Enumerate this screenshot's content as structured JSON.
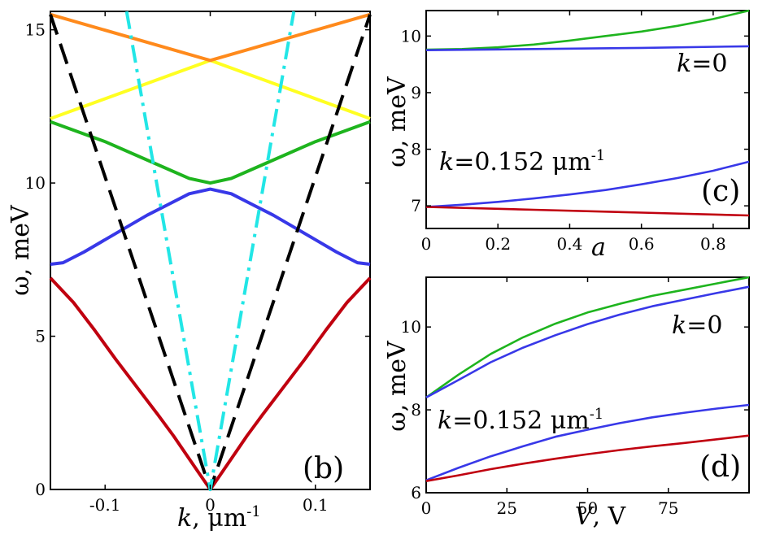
{
  "chart_data": [
    {
      "panel": "b",
      "type": "line",
      "label": "(b)",
      "xlabel": "k, μm",
      "xlabel_sup": "-1",
      "ylabel": "ω, meV",
      "xlim": [
        -0.152,
        0.152
      ],
      "ylim": [
        0,
        15.6
      ],
      "xticks": [
        -0.1,
        0,
        0.1
      ],
      "xtick_labels": [
        "-0.1",
        "0",
        "0.1"
      ],
      "yticks": [
        0,
        5,
        10,
        15
      ],
      "ytick_labels": [
        "0",
        "5",
        "10",
        "15"
      ],
      "series": [
        {
          "name": "lower band",
          "color": "#c0000f",
          "style": "solid",
          "x": [
            -0.152,
            -0.13,
            -0.11,
            -0.09,
            -0.07,
            -0.05,
            -0.035,
            -0.02,
            -0.01,
            0,
            0.01,
            0.02,
            0.035,
            0.05,
            0.07,
            0.09,
            0.11,
            0.13,
            0.152
          ],
          "y": [
            6.9,
            6.1,
            5.2,
            4.25,
            3.35,
            2.45,
            1.75,
            1.0,
            0.5,
            0,
            0.5,
            1.0,
            1.75,
            2.45,
            3.35,
            4.25,
            5.2,
            6.1,
            6.9
          ]
        },
        {
          "name": "blue band",
          "color": "#3838e8",
          "style": "solid",
          "x": [
            -0.152,
            -0.14,
            -0.12,
            -0.1,
            -0.08,
            -0.06,
            -0.04,
            -0.02,
            0,
            0.02,
            0.04,
            0.06,
            0.08,
            0.1,
            0.12,
            0.14,
            0.152
          ],
          "y": [
            7.35,
            7.4,
            7.75,
            8.15,
            8.55,
            8.95,
            9.3,
            9.65,
            9.8,
            9.65,
            9.3,
            8.95,
            8.55,
            8.15,
            7.75,
            7.4,
            7.35
          ]
        },
        {
          "name": "green band",
          "color": "#1eb41e",
          "style": "solid",
          "x": [
            -0.152,
            -0.1,
            -0.05,
            -0.02,
            0,
            0.02,
            0.05,
            0.1,
            0.152
          ],
          "y": [
            12.0,
            11.35,
            10.6,
            10.15,
            10.0,
            10.15,
            10.6,
            11.35,
            12.0
          ]
        },
        {
          "name": "yellow band",
          "color": "#ffff22",
          "style": "solid",
          "x": [
            -0.152,
            0,
            0.152
          ],
          "y": [
            12.1,
            14.0,
            12.1
          ]
        },
        {
          "name": "orange band",
          "color": "#ff8a1c",
          "style": "solid",
          "x": [
            -0.152,
            0,
            0.152
          ],
          "y": [
            15.5,
            14.0,
            15.5
          ]
        },
        {
          "name": "black dashed",
          "color": "#000000",
          "style": "dashed",
          "x": [
            -0.152,
            0,
            0.152
          ],
          "y": [
            15.5,
            0,
            15.5
          ]
        },
        {
          "name": "cyan dash-dot",
          "color": "#22e6e6",
          "style": "dashdot",
          "x": [
            -0.0795,
            0,
            0.0795
          ],
          "y": [
            15.6,
            0,
            15.6
          ]
        }
      ]
    },
    {
      "panel": "c",
      "type": "line",
      "label": "(c)",
      "xlabel": "a",
      "ylabel": "ω, meV",
      "xlim": [
        0,
        0.9
      ],
      "ylim": [
        6.6,
        10.45
      ],
      "xticks": [
        0,
        0.2,
        0.4,
        0.6,
        0.8
      ],
      "xtick_labels": [
        "0",
        "0.2",
        "0.4",
        "0.6",
        "0.8"
      ],
      "yticks": [
        7,
        8,
        9,
        10
      ],
      "ytick_labels": [
        "7",
        "8",
        "9",
        "10"
      ],
      "annotations": [
        {
          "text_italic": "k",
          "text": "=0"
        },
        {
          "text_italic": "k",
          "text": "=0.152 μm",
          "sup": "-1"
        }
      ],
      "series": [
        {
          "name": "green k=0",
          "color": "#1eb41e",
          "x": [
            0,
            0.1,
            0.2,
            0.3,
            0.4,
            0.5,
            0.6,
            0.7,
            0.8,
            0.9
          ],
          "y": [
            9.76,
            9.77,
            9.8,
            9.85,
            9.92,
            10.0,
            10.08,
            10.18,
            10.3,
            10.45
          ]
        },
        {
          "name": "blue k=0",
          "color": "#3838e8",
          "x": [
            0,
            0.3,
            0.6,
            0.9
          ],
          "y": [
            9.75,
            9.77,
            9.79,
            9.82
          ]
        },
        {
          "name": "blue k=0.152",
          "color": "#3838e8",
          "x": [
            0,
            0.1,
            0.2,
            0.3,
            0.4,
            0.5,
            0.6,
            0.7,
            0.8,
            0.9
          ],
          "y": [
            6.98,
            7.02,
            7.07,
            7.13,
            7.2,
            7.28,
            7.38,
            7.49,
            7.62,
            7.78
          ]
        },
        {
          "name": "red k=0.152",
          "color": "#c0000f",
          "x": [
            0,
            0.3,
            0.6,
            0.9
          ],
          "y": [
            6.98,
            6.93,
            6.88,
            6.83
          ]
        }
      ]
    },
    {
      "panel": "d",
      "type": "line",
      "label": "(d)",
      "xlabel": "V, V",
      "ylabel": "ω, meV",
      "xlim": [
        0,
        100
      ],
      "ylim": [
        6,
        11.2
      ],
      "xticks": [
        0,
        25,
        50,
        75
      ],
      "xtick_labels": [
        "0",
        "25",
        "50",
        "75"
      ],
      "yticks": [
        6,
        8,
        10
      ],
      "ytick_labels": [
        "6",
        "8",
        "10"
      ],
      "annotations": [
        {
          "text_italic": "k",
          "text": "=0"
        },
        {
          "text_italic": "k",
          "text": "=0.152 μm",
          "sup": "-1"
        }
      ],
      "series": [
        {
          "name": "green k=0",
          "color": "#1eb41e",
          "x": [
            0,
            10,
            20,
            30,
            40,
            50,
            60,
            70,
            80,
            90,
            100
          ],
          "y": [
            8.3,
            8.85,
            9.35,
            9.75,
            10.08,
            10.35,
            10.56,
            10.75,
            10.9,
            11.05,
            11.2
          ]
        },
        {
          "name": "blue k=0",
          "color": "#3838e8",
          "x": [
            0,
            10,
            20,
            30,
            40,
            50,
            60,
            70,
            80,
            90,
            100
          ],
          "y": [
            8.3,
            8.72,
            9.15,
            9.5,
            9.8,
            10.07,
            10.3,
            10.5,
            10.66,
            10.82,
            10.97
          ]
        },
        {
          "name": "blue k=0.152",
          "color": "#3838e8",
          "x": [
            0,
            10,
            20,
            30,
            40,
            50,
            60,
            70,
            80,
            90,
            100
          ],
          "y": [
            6.3,
            6.6,
            6.88,
            7.12,
            7.35,
            7.52,
            7.68,
            7.82,
            7.93,
            8.03,
            8.12
          ]
        },
        {
          "name": "red k=0.152",
          "color": "#c0000f",
          "x": [
            0,
            10,
            20,
            30,
            40,
            50,
            60,
            70,
            80,
            90,
            100
          ],
          "y": [
            6.28,
            6.42,
            6.57,
            6.7,
            6.82,
            6.93,
            7.03,
            7.12,
            7.2,
            7.29,
            7.38
          ]
        }
      ]
    }
  ]
}
